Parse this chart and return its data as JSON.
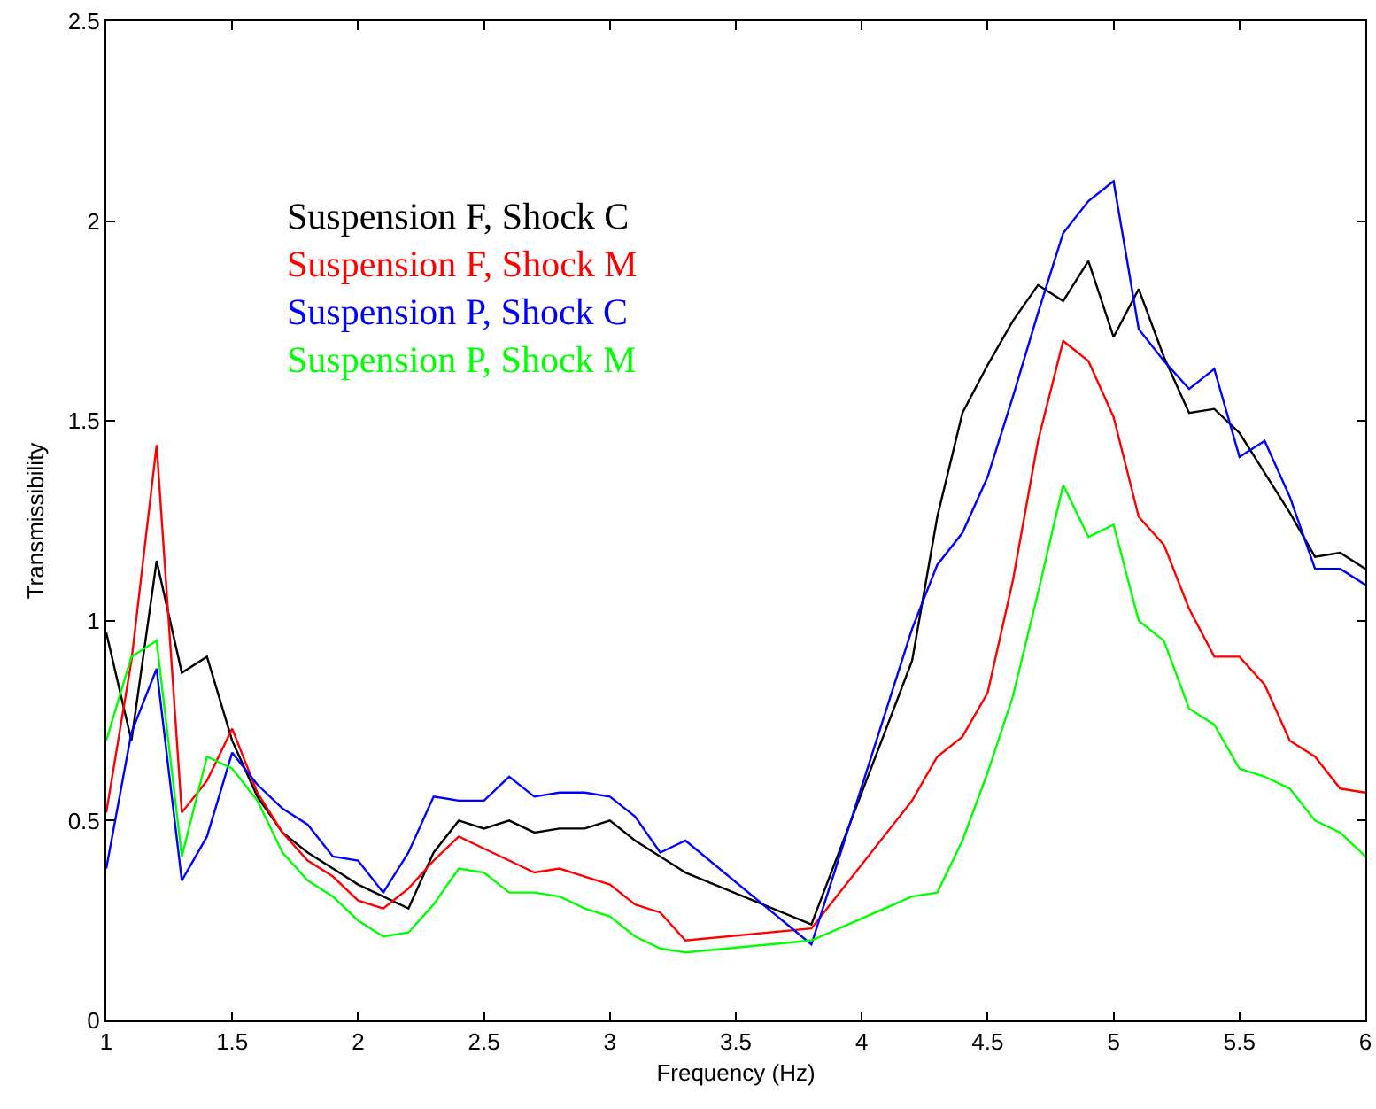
{
  "chart_data": {
    "type": "line",
    "xlabel": "Frequency (Hz)",
    "ylabel": "Transmissibility",
    "x": [
      1,
      1.1,
      1.2,
      1.3,
      1.4,
      1.5,
      1.6,
      1.7,
      1.8,
      1.9,
      2,
      2.1,
      2.2,
      2.3,
      2.4,
      2.5,
      2.6,
      2.7,
      2.8,
      2.9,
      3,
      3.1,
      3.2,
      3.3,
      3.8,
      4.2,
      4.3,
      4.4,
      4.5,
      4.6,
      4.7,
      4.8,
      4.9,
      5,
      5.1,
      5.2,
      5.3,
      5.4,
      5.5,
      5.6,
      5.7,
      5.8,
      5.9,
      6
    ],
    "series": [
      {
        "name": "Suspension F, Shock C",
        "color": "#000000",
        "values": [
          0.97,
          0.7,
          1.15,
          0.87,
          0.91,
          0.7,
          0.56,
          0.47,
          0.42,
          0.38,
          0.34,
          0.31,
          0.28,
          0.42,
          0.5,
          0.48,
          0.5,
          0.47,
          0.48,
          0.48,
          0.5,
          0.45,
          0.41,
          0.37,
          0.24,
          0.9,
          1.26,
          1.52,
          1.64,
          1.75,
          1.84,
          1.8,
          1.9,
          1.71,
          1.83,
          1.66,
          1.52,
          1.53,
          1.47,
          1.37,
          1.27,
          1.16,
          1.17,
          1.13
        ]
      },
      {
        "name": "Suspension F, Shock M",
        "color": "#ff0000",
        "values": [
          0.52,
          0.9,
          1.44,
          0.52,
          0.6,
          0.73,
          0.57,
          0.47,
          0.4,
          0.36,
          0.3,
          0.28,
          0.33,
          0.4,
          0.46,
          0.43,
          0.4,
          0.37,
          0.38,
          0.36,
          0.34,
          0.29,
          0.27,
          0.2,
          0.23,
          0.55,
          0.66,
          0.71,
          0.82,
          1.1,
          1.45,
          1.7,
          1.65,
          1.51,
          1.26,
          1.19,
          1.03,
          0.91,
          0.91,
          0.84,
          0.7,
          0.66,
          0.58,
          0.57
        ]
      },
      {
        "name": "Suspension P, Shock C",
        "color": "#0000ff",
        "values": [
          0.38,
          0.72,
          0.88,
          0.35,
          0.46,
          0.67,
          0.59,
          0.53,
          0.49,
          0.41,
          0.4,
          0.32,
          0.42,
          0.56,
          0.55,
          0.55,
          0.61,
          0.56,
          0.57,
          0.57,
          0.56,
          0.51,
          0.42,
          0.45,
          0.19,
          0.98,
          1.14,
          1.22,
          1.36,
          1.56,
          1.77,
          1.97,
          2.05,
          2.1,
          1.73,
          1.65,
          1.58,
          1.63,
          1.41,
          1.45,
          1.31,
          1.13,
          1.13,
          1.09
        ]
      },
      {
        "name": "Suspension P, Shock M",
        "color": "#00ff00",
        "values": [
          0.7,
          0.91,
          0.95,
          0.41,
          0.66,
          0.63,
          0.55,
          0.42,
          0.35,
          0.31,
          0.25,
          0.21,
          0.22,
          0.29,
          0.38,
          0.37,
          0.32,
          0.32,
          0.31,
          0.28,
          0.26,
          0.21,
          0.18,
          0.17,
          0.2,
          0.31,
          0.32,
          0.45,
          0.62,
          0.81,
          1.07,
          1.34,
          1.21,
          1.24,
          1.0,
          0.95,
          0.78,
          0.74,
          0.63,
          0.61,
          0.58,
          0.5,
          0.47,
          0.41
        ]
      }
    ],
    "xlim": [
      1,
      6
    ],
    "xticks": [
      1,
      1.5,
      2,
      2.5,
      3,
      3.5,
      4,
      4.5,
      5,
      5.5,
      6
    ],
    "ylim": [
      0,
      2.5
    ],
    "yticks": [
      0,
      0.5,
      1,
      1.5,
      2,
      2.5
    ],
    "grid": false,
    "legend": "top left",
    "marker": "none",
    "line_style": "solid"
  }
}
